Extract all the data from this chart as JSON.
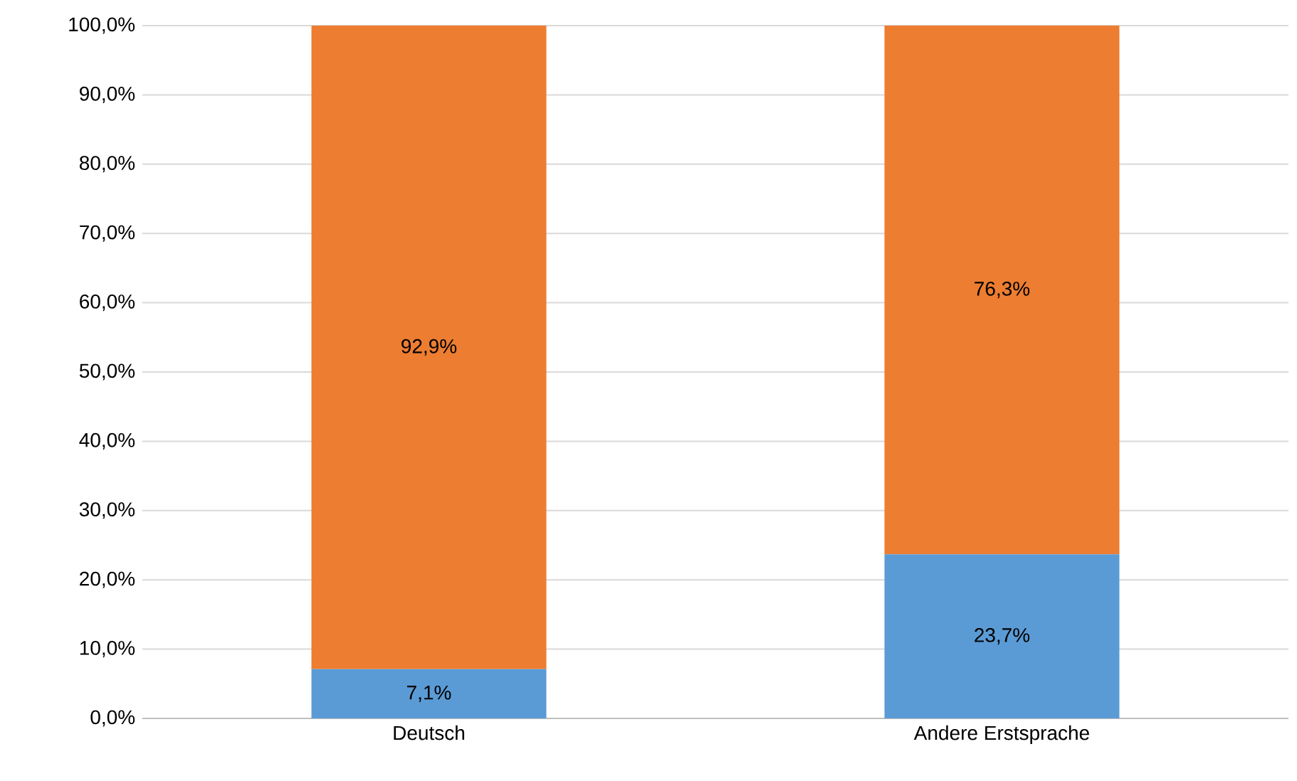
{
  "chart_data": {
    "type": "bar",
    "stacked": true,
    "categories": [
      "Deutsch",
      "Andere Erstsprache"
    ],
    "series": [
      {
        "color": "#5b9bd5",
        "values": [
          7.1,
          23.7
        ],
        "value_labels": [
          "7,1%",
          "23,7%"
        ]
      },
      {
        "color": "#ed7d31",
        "values": [
          92.9,
          76.3
        ],
        "value_labels": [
          "92,9%",
          "76,3%"
        ]
      }
    ],
    "ylim": [
      0,
      100
    ],
    "yticks": [
      {
        "value": 0,
        "label": "0,0%"
      },
      {
        "value": 10,
        "label": "10,0%"
      },
      {
        "value": 20,
        "label": "20,0%"
      },
      {
        "value": 30,
        "label": "30,0%"
      },
      {
        "value": 40,
        "label": "40,0%"
      },
      {
        "value": 50,
        "label": "50,0%"
      },
      {
        "value": 60,
        "label": "60,0%"
      },
      {
        "value": 70,
        "label": "70,0%"
      },
      {
        "value": 80,
        "label": "80,0%"
      },
      {
        "value": 90,
        "label": "90,0%"
      },
      {
        "value": 100,
        "label": "100,0%"
      }
    ],
    "grid": "y"
  }
}
